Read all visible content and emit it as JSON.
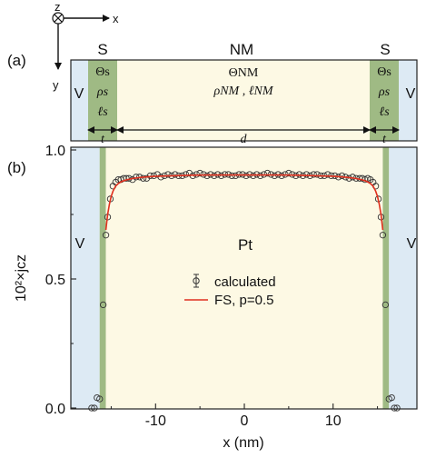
{
  "figure": {
    "colors": {
      "vacuum": "#ddeaf4",
      "superlayer": "#9fba84",
      "normal_metal": "#fdf9e4",
      "calculated_marker": "#333333",
      "fs_curve": "#e0301e",
      "axis": "#222222"
    },
    "panel_a": {
      "label": "(a)",
      "coord_axes": {
        "z": "z",
        "x": "x",
        "y": "y"
      },
      "region_titles": {
        "left_s": "S",
        "nm": "NM",
        "right_s": "S"
      },
      "vacuum_label": "V",
      "s_params": [
        "Θs",
        "ρs",
        "ℓs"
      ],
      "nm_params": {
        "theta": "ΘNM",
        "rho_ell": "ρNM , ℓNM"
      },
      "dimensions": {
        "thickness": "t",
        "length": "d"
      }
    },
    "panel_b": {
      "label": "(b)",
      "material": "Pt",
      "vacuum_label": "V"
    }
  },
  "chart_data": {
    "type": "scatter",
    "xlabel": "x (nm)",
    "ylabel": "10²×jcz",
    "xlim": [
      -17.5,
      17.5
    ],
    "ylim": [
      0.0,
      1.0
    ],
    "xticks": [
      -10,
      0,
      10
    ],
    "xtick_labels": [
      "-10",
      "0",
      "10"
    ],
    "yticks": [
      0.0,
      0.5,
      1.0
    ],
    "ytick_labels": [
      "0.0",
      "0.5",
      "1.0"
    ],
    "grid": false,
    "legend": {
      "placement": "center",
      "entries": [
        "calculated",
        "FS, p=0.5"
      ]
    },
    "regions": {
      "vacuum": [
        [
          -17.5,
          -16.3
        ],
        [
          16.3,
          17.5
        ]
      ],
      "superlayer": [
        [
          -16.3,
          -15.6
        ],
        [
          15.6,
          16.3
        ]
      ],
      "normal_metal": [
        -15.6,
        15.6
      ]
    },
    "series": [
      {
        "name": "calculated",
        "kind": "markers",
        "x": [
          -17.2,
          -16.9,
          -16.6,
          -16.3,
          -15.9,
          -15.6,
          -15.4,
          -15.1,
          -14.8,
          -14.5,
          -14.2,
          -13.9,
          -13.6,
          -13.3,
          -13.0,
          -12.6,
          -12.2,
          -11.8,
          -11.4,
          -11.0,
          -10.6,
          -10.2,
          -9.8,
          -9.4,
          -9.0,
          -8.6,
          -8.2,
          -7.8,
          -7.4,
          -7.0,
          -6.6,
          -6.2,
          -5.8,
          -5.4,
          -5.0,
          -4.6,
          -4.2,
          -3.8,
          -3.4,
          -3.0,
          -2.6,
          -2.2,
          -1.8,
          -1.4,
          -1.0,
          -0.6,
          -0.2,
          0.2,
          0.6,
          1.0,
          1.4,
          1.8,
          2.2,
          2.6,
          3.0,
          3.4,
          3.8,
          4.2,
          4.6,
          5.0,
          5.4,
          5.8,
          6.2,
          6.6,
          7.0,
          7.4,
          7.8,
          8.2,
          8.6,
          9.0,
          9.4,
          9.8,
          10.2,
          10.6,
          11.0,
          11.4,
          11.8,
          12.2,
          12.6,
          13.0,
          13.3,
          13.6,
          13.9,
          14.2,
          14.5,
          14.8,
          15.1,
          15.4,
          15.6,
          15.9,
          16.3,
          16.6,
          16.9,
          17.2
        ],
        "y": [
          0.0,
          0.0,
          0.04,
          0.035,
          0.4,
          0.67,
          0.74,
          0.81,
          0.86,
          0.875,
          0.885,
          0.885,
          0.89,
          0.89,
          0.89,
          0.885,
          0.895,
          0.895,
          0.89,
          0.89,
          0.9,
          0.9,
          0.905,
          0.895,
          0.9,
          0.905,
          0.9,
          0.905,
          0.9,
          0.9,
          0.905,
          0.91,
          0.9,
          0.905,
          0.91,
          0.905,
          0.9,
          0.905,
          0.9,
          0.905,
          0.9,
          0.905,
          0.905,
          0.9,
          0.9,
          0.905,
          0.905,
          0.9,
          0.905,
          0.9,
          0.905,
          0.9,
          0.905,
          0.91,
          0.905,
          0.9,
          0.905,
          0.9,
          0.905,
          0.91,
          0.905,
          0.9,
          0.905,
          0.9,
          0.905,
          0.9,
          0.905,
          0.905,
          0.9,
          0.9,
          0.905,
          0.9,
          0.9,
          0.895,
          0.9,
          0.895,
          0.89,
          0.895,
          0.89,
          0.89,
          0.89,
          0.885,
          0.89,
          0.885,
          0.875,
          0.86,
          0.81,
          0.74,
          0.67,
          0.4,
          0.035,
          0.04,
          0.0,
          0.0
        ]
      },
      {
        "name": "FS, p=0.5",
        "kind": "line",
        "x": [
          -15.6,
          -15.4,
          -15.2,
          -15.0,
          -14.8,
          -14.5,
          -14.2,
          -13.8,
          -13.3,
          -12.5,
          -11.5,
          -10.0,
          -8.0,
          -6.0,
          -4.0,
          -2.0,
          0.0,
          2.0,
          4.0,
          6.0,
          8.0,
          10.0,
          11.5,
          12.5,
          13.3,
          13.8,
          14.2,
          14.5,
          14.8,
          15.0,
          15.2,
          15.4,
          15.6
        ],
        "y": [
          0.69,
          0.75,
          0.79,
          0.82,
          0.84,
          0.86,
          0.87,
          0.878,
          0.884,
          0.89,
          0.894,
          0.898,
          0.9,
          0.902,
          0.903,
          0.903,
          0.903,
          0.903,
          0.903,
          0.902,
          0.9,
          0.898,
          0.894,
          0.89,
          0.884,
          0.878,
          0.87,
          0.86,
          0.84,
          0.82,
          0.79,
          0.75,
          0.69
        ]
      }
    ]
  }
}
